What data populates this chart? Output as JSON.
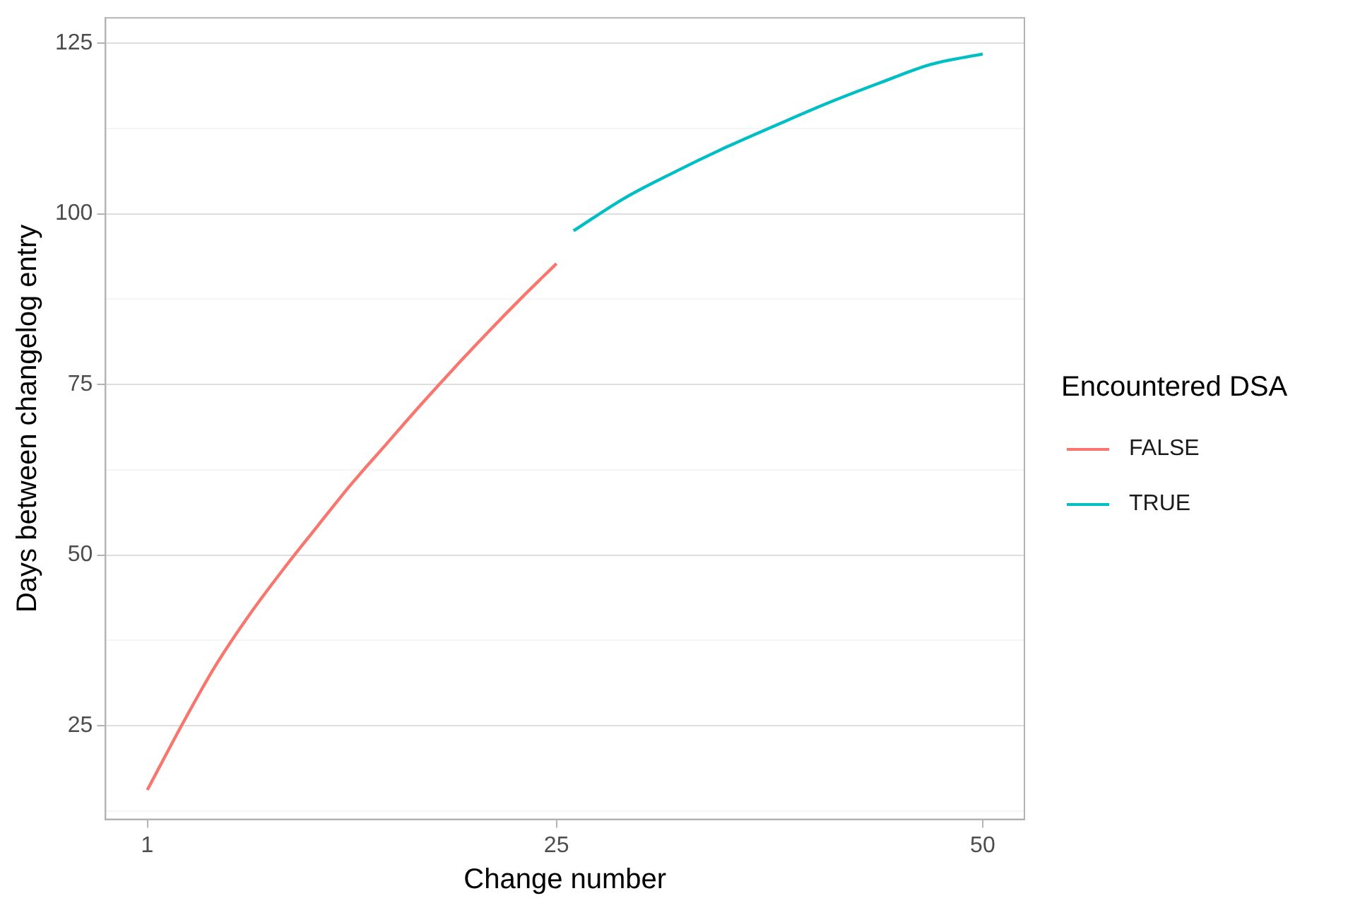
{
  "chart_data": {
    "type": "line",
    "xlabel": "Change number",
    "ylabel": "Days between changelog entry",
    "legend_title": "Encountered DSA",
    "xlim": [
      -1.45,
      52.45
    ],
    "xticks": [
      1,
      25,
      50
    ],
    "ylim": [
      11.3,
      128.7
    ],
    "yticks": [
      {
        "value": 12.5,
        "label": null
      },
      25,
      {
        "value": 37.5,
        "label": null
      },
      50,
      {
        "value": 62.5,
        "label": null
      },
      75,
      {
        "value": 87.5,
        "label": null
      },
      100,
      {
        "value": 112.5,
        "label": null
      },
      125
    ],
    "grid": "y",
    "legend": "right",
    "marker": "none",
    "line_style": "solid",
    "series": [
      {
        "name": "FALSE",
        "color": "#f8766d",
        "x": [
          1,
          3,
          5,
          7,
          9,
          11,
          13,
          15,
          17,
          19,
          21,
          23,
          25
        ],
        "values": [
          15.6,
          25,
          33.8,
          41.3,
          48,
          54.3,
          60.5,
          66.2,
          71.9,
          77.4,
          82.7,
          87.8,
          92.7
        ]
      },
      {
        "name": "TRUE",
        "color": "#00bfc4",
        "x": [
          26,
          29,
          32,
          35,
          38,
          41,
          44,
          47,
          50
        ],
        "values": [
          97.5,
          102.3,
          106.2,
          109.8,
          113.1,
          116.3,
          119.2,
          121.9,
          123.4
        ]
      }
    ]
  }
}
